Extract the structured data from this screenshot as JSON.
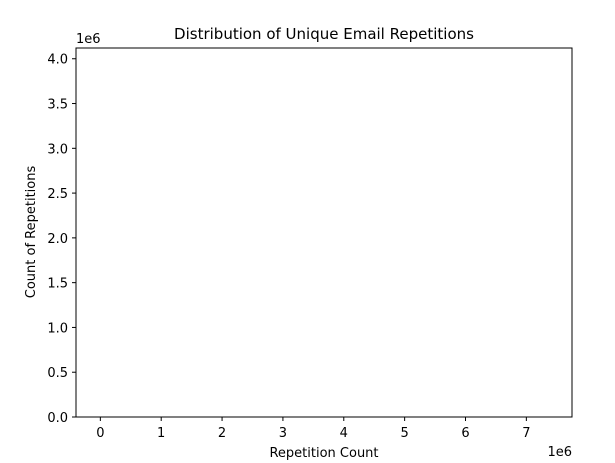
{
  "chart_data": {
    "type": "bar",
    "title": "Distribution of Unique Email Repetitions",
    "xlabel": "Repetition Count",
    "ylabel": "Count of Repetitions",
    "x_offset_label": "1e6",
    "y_offset_label": "1e6",
    "xlim": [
      -0.4,
      7.75
    ],
    "ylim": [
      0,
      4.12
    ],
    "x_ticks": [
      0,
      1,
      2,
      3,
      4,
      5,
      6,
      7
    ],
    "x_tick_labels": [
      "0",
      "1",
      "2",
      "3",
      "4",
      "5",
      "6",
      "7"
    ],
    "y_ticks": [
      0,
      0.5,
      1.0,
      1.5,
      2.0,
      2.5,
      3.0,
      3.5,
      4.0
    ],
    "y_tick_labels": [
      "0.0",
      "0.5",
      "1.0",
      "1.5",
      "2.0",
      "2.5",
      "3.0",
      "3.5",
      "4.0"
    ],
    "series": [],
    "grid": false,
    "legend": "none"
  }
}
